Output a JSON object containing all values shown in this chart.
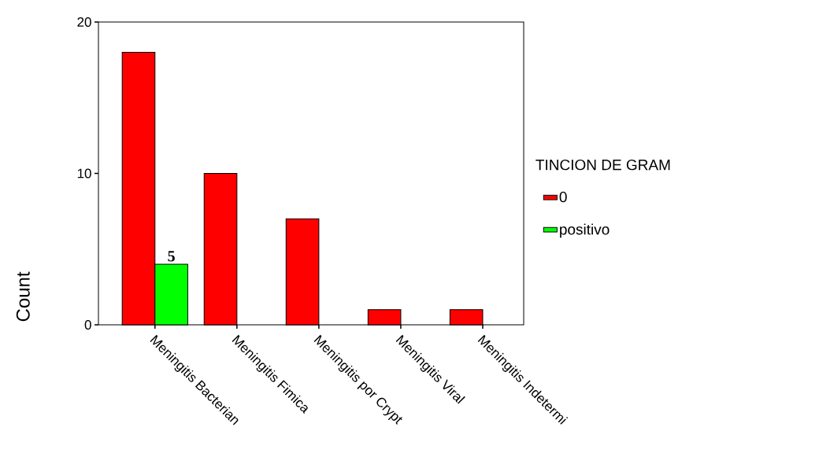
{
  "chart_data": {
    "type": "bar",
    "ylabel": "Count",
    "legend_title": "TINCION DE GRAM",
    "categories": [
      "Meningitis Bacterian",
      "Meningitis Fimica",
      "Meningitis por Crypt",
      "Meningitis Viral",
      "Meningitis Indetermi"
    ],
    "series": [
      {
        "name": "0",
        "color": "#ff0000",
        "values": [
          18,
          10,
          7,
          1,
          1
        ]
      },
      {
        "name": "positivo",
        "color": "#00ff00",
        "values": [
          4,
          null,
          null,
          null,
          null
        ]
      }
    ],
    "ylim": [
      0,
      20
    ],
    "yticks": [
      0,
      10,
      20
    ],
    "legend": "right",
    "annotations": [
      {
        "text": "5",
        "x": "Meningitis Bacterian",
        "y": 4
      }
    ]
  }
}
